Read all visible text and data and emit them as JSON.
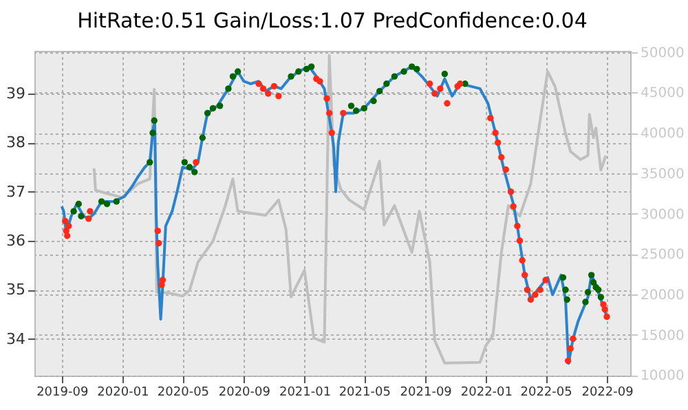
{
  "chart_data": {
    "type": "line",
    "title": "HitRate:0.51 Gain/Loss:1.07 PredConfidence:0.04",
    "xlim": [
      "2019-07-08",
      "2022-10-18"
    ],
    "xticks": [
      "2019-09",
      "2020-01",
      "2020-05",
      "2020-09",
      "2021-01",
      "2021-05",
      "2021-09",
      "2022-01",
      "2022-05",
      "2022-09"
    ],
    "ylim": [
      33.25,
      39.87
    ],
    "yticks": [
      34,
      35,
      36,
      37,
      38,
      39
    ],
    "y2lim": [
      9950,
      50150
    ],
    "y2ticks": [
      10000,
      15000,
      20000,
      25000,
      30000,
      35000,
      40000,
      45000,
      50000
    ],
    "grid": true,
    "series": [
      {
        "axis": "y2",
        "color": "#bfbfbf",
        "x": [
          "2019-11-05",
          "2019-11-08",
          "2019-12-01",
          "2020-01-01",
          "2020-02-01",
          "2020-02-25",
          "2020-03-05",
          "2020-03-10",
          "2020-04-01",
          "2020-05-01",
          "2020-05-15",
          "2020-06-01",
          "2020-07-01",
          "2020-07-25",
          "2020-08-10",
          "2020-08-20",
          "2020-10-15",
          "2020-11-10",
          "2020-11-25",
          "2020-12-05",
          "2021-01-01",
          "2021-01-20",
          "2021-02-10",
          "2021-02-20",
          "2021-03-01",
          "2021-03-15",
          "2021-04-01",
          "2021-05-01",
          "2021-06-01",
          "2021-06-10",
          "2021-07-01",
          "2021-08-05",
          "2021-08-20",
          "2021-09-10",
          "2021-09-20",
          "2021-10-10",
          "2021-12-20",
          "2022-01-01",
          "2022-01-15",
          "2022-02-01",
          "2022-02-15",
          "2022-03-10",
          "2022-04-01",
          "2022-04-20",
          "2022-05-05",
          "2022-05-20",
          "2022-06-10",
          "2022-06-20",
          "2022-07-10",
          "2022-07-25",
          "2022-07-28",
          "2022-08-05",
          "2022-08-10",
          "2022-08-20",
          "2022-08-30"
        ],
        "values": [
          35600,
          32900,
          32500,
          32000,
          33700,
          34300,
          45400,
          20300,
          20200,
          19800,
          20500,
          24000,
          26600,
          30800,
          34300,
          30300,
          29800,
          31700,
          28000,
          19700,
          23000,
          14600,
          14100,
          49600,
          36000,
          33000,
          31700,
          30500,
          36500,
          28600,
          31000,
          25200,
          30300,
          24000,
          14300,
          11500,
          11600,
          13700,
          14900,
          25200,
          31000,
          29700,
          33700,
          41600,
          47600,
          45700,
          39900,
          37700,
          36700,
          37200,
          42300,
          39400,
          40600,
          35400,
          37200
        ]
      },
      {
        "color": "#2b83cc",
        "x": [
          "2019-09-01",
          "2019-09-05",
          "2019-09-10",
          "2019-09-20",
          "2019-10-01",
          "2019-10-15",
          "2019-10-25",
          "2019-11-05",
          "2019-11-20",
          "2019-12-15",
          "2020-01-05",
          "2020-01-20",
          "2020-02-01",
          "2020-02-15",
          "2020-02-25",
          "2020-03-03",
          "2020-03-06",
          "2020-03-09",
          "2020-03-12",
          "2020-03-18",
          "2020-03-22",
          "2020-03-28",
          "2020-04-10",
          "2020-04-20",
          "2020-05-01",
          "2020-05-20",
          "2020-06-01",
          "2020-06-10",
          "2020-06-20",
          "2020-07-10",
          "2020-08-01",
          "2020-08-20",
          "2020-09-01",
          "2020-09-15",
          "2020-10-01",
          "2020-10-15",
          "2020-11-01",
          "2020-11-15",
          "2020-12-01",
          "2020-12-20",
          "2021-01-10",
          "2021-01-25",
          "2021-02-10",
          "2021-02-25",
          "2021-03-01",
          "2021-03-05",
          "2021-03-10",
          "2021-03-20",
          "2021-04-10",
          "2021-05-01",
          "2021-06-01",
          "2021-07-01",
          "2021-08-05",
          "2021-08-25",
          "2021-09-10",
          "2021-09-25",
          "2021-10-10",
          "2021-10-25",
          "2021-11-10",
          "2021-12-01",
          "2021-12-20",
          "2022-01-05",
          "2022-01-20",
          "2022-02-05",
          "2022-02-25",
          "2022-03-05",
          "2022-03-20",
          "2022-04-01",
          "2022-04-15",
          "2022-05-01",
          "2022-05-05",
          "2022-05-15",
          "2022-06-01",
          "2022-06-10",
          "2022-06-16",
          "2022-06-25",
          "2022-07-05",
          "2022-07-15",
          "2022-07-25",
          "2022-08-01",
          "2022-08-10",
          "2022-08-20",
          "2022-09-01"
        ],
        "values": [
          36.7,
          36.6,
          36.15,
          36.5,
          36.75,
          36.5,
          36.45,
          36.55,
          36.8,
          36.8,
          36.9,
          37.1,
          37.3,
          37.5,
          37.6,
          38.3,
          38.4,
          36.5,
          35.5,
          34.4,
          35.1,
          36.3,
          36.6,
          37.0,
          37.5,
          37.45,
          37.6,
          38.1,
          38.6,
          38.75,
          39.1,
          39.45,
          39.25,
          39.2,
          39.25,
          39.05,
          39.15,
          39.1,
          39.3,
          39.45,
          39.55,
          39.35,
          39.1,
          38.2,
          37.9,
          37.0,
          38.0,
          38.6,
          38.6,
          38.7,
          39.05,
          39.35,
          39.55,
          39.35,
          39.15,
          38.95,
          39.3,
          38.95,
          39.2,
          39.15,
          39.1,
          38.8,
          38.2,
          37.5,
          36.75,
          36.3,
          35.3,
          34.8,
          35.0,
          35.2,
          35.25,
          34.9,
          35.3,
          34.8,
          33.5,
          34.0,
          34.35,
          34.6,
          34.85,
          35.3,
          35.1,
          34.8,
          34.45
        ]
      },
      {
        "type": "scatter",
        "color": "#006400",
        "marker": "circle",
        "x": [
          "2019-09-25",
          "2019-10-05",
          "2019-10-10",
          "2019-11-20",
          "2019-12-01",
          "2019-12-20",
          "2020-02-25",
          "2020-03-02",
          "2020-03-05",
          "2020-05-05",
          "2020-05-15",
          "2020-05-25",
          "2020-06-10",
          "2020-06-20",
          "2020-07-01",
          "2020-07-15",
          "2020-08-01",
          "2020-08-10",
          "2020-08-20",
          "2020-12-05",
          "2020-12-20",
          "2021-01-05",
          "2021-01-15",
          "2021-04-05",
          "2021-04-15",
          "2021-05-01",
          "2021-05-20",
          "2021-06-01",
          "2021-06-15",
          "2021-07-01",
          "2021-07-20",
          "2021-08-05",
          "2021-08-15",
          "2021-10-10",
          "2021-11-20",
          "2022-06-05",
          "2022-06-10",
          "2022-06-13",
          "2022-07-20",
          "2022-07-25",
          "2022-08-01",
          "2022-08-05",
          "2022-08-10",
          "2022-08-15",
          "2022-08-20"
        ],
        "values": [
          36.6,
          36.75,
          36.5,
          36.8,
          36.75,
          36.8,
          37.6,
          38.2,
          38.45,
          37.6,
          37.5,
          37.4,
          38.1,
          38.6,
          38.7,
          38.75,
          39.1,
          39.35,
          39.45,
          39.35,
          39.45,
          39.5,
          39.55,
          38.75,
          38.65,
          38.7,
          38.85,
          39.05,
          39.2,
          39.35,
          39.45,
          39.55,
          39.5,
          39.4,
          39.2,
          35.25,
          35.0,
          34.8,
          34.75,
          34.95,
          35.3,
          35.15,
          35.05,
          35.0,
          34.85
        ]
      },
      {
        "type": "scatter",
        "color": "#ff2a1a",
        "marker": "circle",
        "x": [
          "2019-09-08",
          "2019-09-10",
          "2019-09-12",
          "2019-09-15",
          "2019-10-25",
          "2019-10-28",
          "2020-03-12",
          "2020-03-14",
          "2020-03-20",
          "2020-03-22",
          "2020-05-28",
          "2020-10-01",
          "2020-10-10",
          "2020-10-20",
          "2020-11-01",
          "2020-11-10",
          "2021-01-25",
          "2021-02-01",
          "2021-02-15",
          "2021-02-20",
          "2021-02-25",
          "2021-03-20",
          "2021-09-10",
          "2021-09-20",
          "2021-10-01",
          "2021-10-15",
          "2021-11-05",
          "2021-11-10",
          "2022-01-10",
          "2022-01-20",
          "2022-01-25",
          "2022-02-01",
          "2022-02-10",
          "2022-02-20",
          "2022-02-25",
          "2022-03-05",
          "2022-03-10",
          "2022-03-15",
          "2022-03-20",
          "2022-03-25",
          "2022-04-01",
          "2022-04-10",
          "2022-04-20",
          "2022-05-01",
          "2022-06-15",
          "2022-06-20",
          "2022-06-25",
          "2022-08-25",
          "2022-08-28",
          "2022-09-01"
        ],
        "values": [
          36.4,
          36.2,
          36.1,
          36.3,
          36.45,
          36.6,
          36.2,
          35.95,
          35.1,
          35.2,
          37.6,
          39.2,
          39.1,
          39.0,
          39.15,
          38.95,
          39.3,
          39.25,
          38.9,
          38.6,
          38.2,
          38.6,
          39.2,
          39.0,
          39.1,
          38.8,
          39.15,
          39.2,
          38.5,
          38.2,
          38.0,
          37.7,
          37.45,
          37.0,
          36.7,
          36.3,
          36.0,
          35.6,
          35.3,
          35.0,
          34.8,
          34.9,
          35.0,
          35.2,
          33.55,
          33.8,
          34.0,
          34.7,
          34.6,
          34.45
        ]
      }
    ]
  }
}
